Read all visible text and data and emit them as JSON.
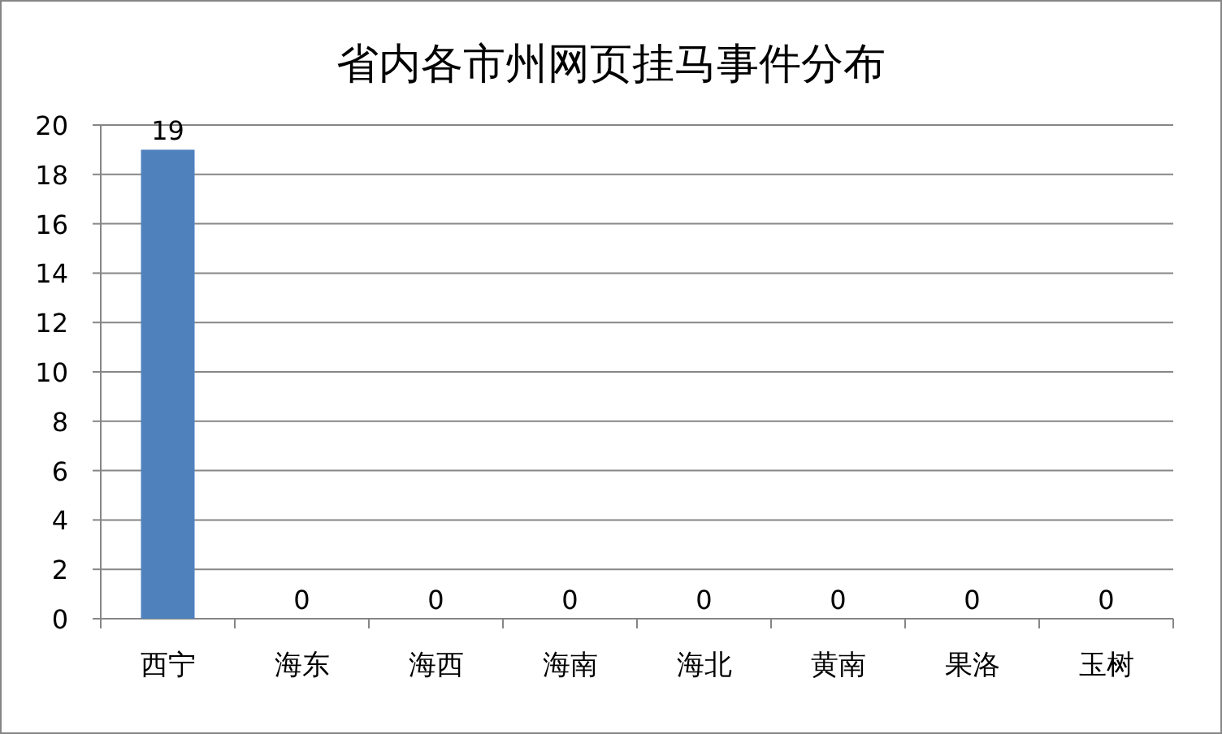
{
  "chart_data": {
    "type": "bar",
    "title": "省内各市州网页挂马事件分布",
    "categories": [
      "西宁",
      "海东",
      "海西",
      "海南",
      "海北",
      "黄南",
      "果洛",
      "玉树"
    ],
    "values": [
      19,
      0,
      0,
      0,
      0,
      0,
      0,
      0
    ],
    "color": "#4f81bd",
    "ylim": [
      0,
      20
    ],
    "yticks": [
      0,
      2,
      4,
      6,
      8,
      10,
      12,
      14,
      16,
      18,
      20
    ],
    "grid": "y",
    "data_labels": true
  }
}
